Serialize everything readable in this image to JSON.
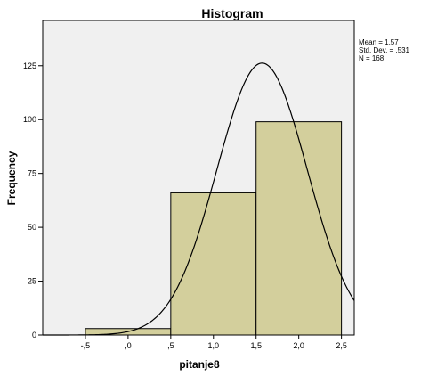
{
  "chart_data": {
    "type": "bar",
    "title": "Histogram",
    "xlabel": "pitanje8",
    "ylabel": "Frequency",
    "bins": [
      {
        "start": -0.5,
        "end": 0.5,
        "count": 3
      },
      {
        "start": 0.5,
        "end": 1.5,
        "count": 66
      },
      {
        "start": 1.5,
        "end": 2.5,
        "count": 99
      }
    ],
    "normal_curve": {
      "mean": 1.57,
      "std_dev": 0.531,
      "n": 168,
      "bin_width": 1.0
    },
    "x_ticks": [
      -0.5,
      0,
      0.5,
      1.0,
      1.5,
      2.0,
      2.5
    ],
    "x_tick_labels": [
      "-,5",
      ",0",
      ",5",
      "1,0",
      "1,5",
      "2,0",
      "2,5"
    ],
    "y_ticks": [
      0,
      25,
      50,
      75,
      100,
      125
    ],
    "y_tick_labels": [
      "0",
      "25",
      "50",
      "75",
      "100",
      "125"
    ],
    "xlim": [
      -1.0,
      2.65
    ],
    "ylim": [
      0,
      146
    ],
    "grid": false,
    "colors": {
      "plot_bg": "#f0f0f0",
      "bar_fill": "#d3cf9c",
      "bar_stroke": "#000000",
      "curve": "#000000"
    },
    "stats": [
      "Mean = 1,57",
      "Std. Dev. = ,531",
      "N = 168"
    ]
  }
}
